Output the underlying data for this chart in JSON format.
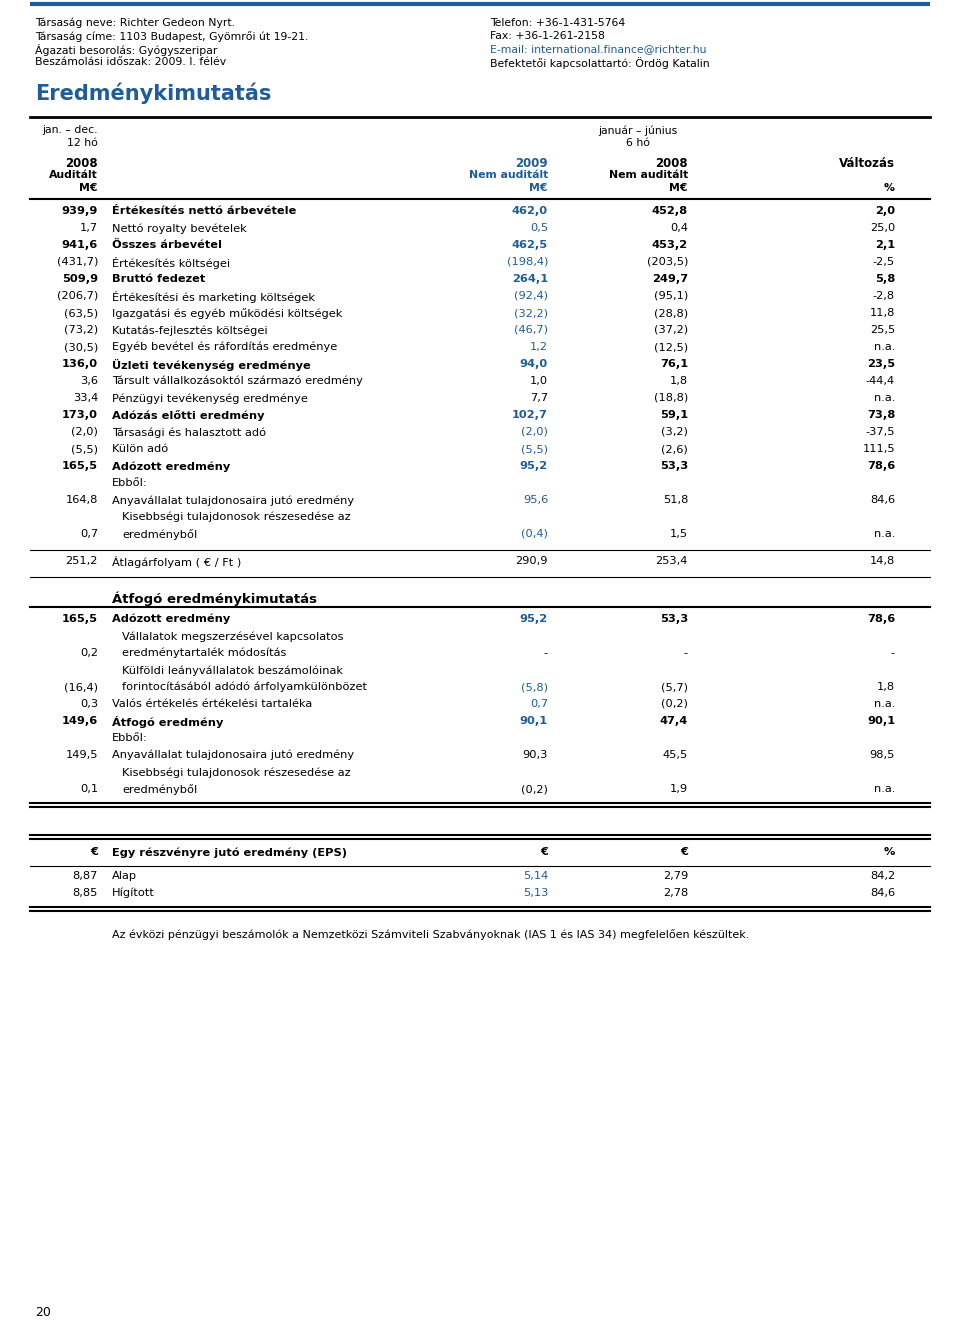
{
  "header_left1": "Társaság neve: Richter Gedeon Nyrt.",
  "header_left2": "Társaság címe: 1103 Budapest, Gyömrői út 19-21.",
  "header_left3": "Ágazati besorolás: Gyógyszeripar",
  "header_left4": "Beszámolási időszak: 2009. I. félév",
  "header_right1": "Telefon: +36-1-431-5764",
  "header_right2": "Fax: +36-1-261-2158",
  "header_right3": "E-mail: international.finance@richter.hu",
  "header_right4": "Befektetői kapcsolattartó: Ördög Katalin",
  "title": "Eredménykimutatás",
  "rows": [
    {
      "bold": true,
      "col1": "939,9",
      "label": "Értékesítés nettó árbevétele",
      "col2": "462,0",
      "col3": "452,8",
      "col4": "2,0",
      "col2_blue": true,
      "col4_bold": true
    },
    {
      "bold": false,
      "col1": "1,7",
      "label": "Nettó royalty bevételek",
      "col2": "0,5",
      "col3": "0,4",
      "col4": "25,0",
      "col2_blue": true,
      "col4_bold": false
    },
    {
      "bold": true,
      "col1": "941,6",
      "label": "Összes árbevétel",
      "col2": "462,5",
      "col3": "453,2",
      "col4": "2,1",
      "col2_blue": true,
      "col4_bold": true
    },
    {
      "bold": false,
      "col1": "(431,7)",
      "label": "Értékesítés költségei",
      "col2": "(198,4)",
      "col3": "(203,5)",
      "col4": "-2,5",
      "col2_blue": true,
      "col4_bold": false
    },
    {
      "bold": true,
      "col1": "509,9",
      "label": "Bruttó fedezet",
      "col2": "264,1",
      "col3": "249,7",
      "col4": "5,8",
      "col2_blue": true,
      "col4_bold": true
    },
    {
      "bold": false,
      "col1": "(206,7)",
      "label": "Értékesítési és marketing költségek",
      "col2": "(92,4)",
      "col3": "(95,1)",
      "col4": "-2,8",
      "col2_blue": true,
      "col4_bold": false
    },
    {
      "bold": false,
      "col1": "(63,5)",
      "label": "Igazgatási és egyéb működési költségek",
      "col2": "(32,2)",
      "col3": "(28,8)",
      "col4": "11,8",
      "col2_blue": true,
      "col4_bold": false
    },
    {
      "bold": false,
      "col1": "(73,2)",
      "label": "Kutatás-fejlesztés költségei",
      "col2": "(46,7)",
      "col3": "(37,2)",
      "col4": "25,5",
      "col2_blue": true,
      "col4_bold": false
    },
    {
      "bold": false,
      "col1": "(30,5)",
      "label": "Egyéb bevétel és ráfordítás eredménye",
      "col2": "1,2",
      "col3": "(12,5)",
      "col4": "n.a.",
      "col2_blue": true,
      "col4_bold": false
    },
    {
      "bold": true,
      "col1": "136,0",
      "label": "Üzleti tevékenység eredménye",
      "col2": "94,0",
      "col3": "76,1",
      "col4": "23,5",
      "col2_blue": true,
      "col4_bold": true
    },
    {
      "bold": false,
      "col1": "3,6",
      "label": "Társult vállalkozásoktól származó eredmény",
      "col2": "1,0",
      "col3": "1,8",
      "col4": "-44,4",
      "col2_blue": false,
      "col4_bold": false
    },
    {
      "bold": false,
      "col1": "33,4",
      "label": "Pénzügyi tevékenység eredménye",
      "col2": "7,7",
      "col3": "(18,8)",
      "col4": "n.a.",
      "col2_blue": false,
      "col4_bold": false
    },
    {
      "bold": true,
      "col1": "173,0",
      "label": "Adózás előtti eredmény",
      "col2": "102,7",
      "col3": "59,1",
      "col4": "73,8",
      "col2_blue": true,
      "col4_bold": true
    },
    {
      "bold": false,
      "col1": "(2,0)",
      "label": "Társasági és halasztott adó",
      "col2": "(2,0)",
      "col3": "(3,2)",
      "col4": "-37,5",
      "col2_blue": true,
      "col4_bold": false
    },
    {
      "bold": false,
      "col1": "(5,5)",
      "label": "Külön adó",
      "col2": "(5,5)",
      "col3": "(2,6)",
      "col4": "111,5",
      "col2_blue": true,
      "col4_bold": false
    },
    {
      "bold": true,
      "col1": "165,5",
      "label": "Adózott eredmény",
      "col2": "95,2",
      "col3": "53,3",
      "col4": "78,6",
      "col2_blue": true,
      "col4_bold": true
    },
    {
      "bold": false,
      "col1": "",
      "label": "Ebből:",
      "col2": "",
      "col3": "",
      "col4": "",
      "col2_blue": false,
      "col4_bold": false,
      "label_only": true
    },
    {
      "bold": false,
      "col1": "164,8",
      "label": "Anyavállalat tulajdonosaira jutó eredmény",
      "col2": "95,6",
      "col3": "51,8",
      "col4": "84,6",
      "col2_blue": true,
      "col4_bold": false
    },
    {
      "bold": false,
      "col1": "0,7",
      "label": "Kisebbségi tulajdonosok részesedése az",
      "col2": "",
      "col3": "",
      "col4": "",
      "col2_blue": false,
      "col4_bold": false,
      "label_only": true,
      "indent": true
    },
    {
      "bold": false,
      "col1": "0,7",
      "label": "eredményből",
      "col2": "(0,4)",
      "col3": "1,5",
      "col4": "n.a.",
      "col2_blue": true,
      "col4_bold": false,
      "indent": true
    }
  ],
  "divider_row": {
    "col1": "251,2",
    "label": "Átlagárfolyam ( € / Ft )",
    "col2": "290,9",
    "col3": "253,4",
    "col4": "14,8"
  },
  "section2_title": "Átfogó eredménykimutatás",
  "rows2": [
    {
      "bold": true,
      "col1": "165,5",
      "label": "Adózott eredmény",
      "col2": "95,2",
      "col3": "53,3",
      "col4": "78,6",
      "col2_blue": true,
      "col4_bold": true
    },
    {
      "bold": false,
      "col1": "",
      "label": "Vállalatok megszerzésével kapcsolatos",
      "col2": "",
      "col3": "",
      "col4": "",
      "col2_blue": false,
      "col4_bold": false,
      "label_only": true,
      "indent": true
    },
    {
      "bold": false,
      "col1": "0,2",
      "label": "eredménytartalék módosítás",
      "col2": "-",
      "col3": "-",
      "col4": "-",
      "col2_blue": false,
      "col4_bold": false,
      "indent": true
    },
    {
      "bold": false,
      "col1": "",
      "label": "Külföldi leányvállalatok beszámolóinak",
      "col2": "",
      "col3": "",
      "col4": "",
      "col2_blue": false,
      "col4_bold": false,
      "label_only": true,
      "indent": true
    },
    {
      "bold": false,
      "col1": "(16,4)",
      "label": "forintосításából adódó árfolyamkülönbözet",
      "col2": "(5,8)",
      "col3": "(5,7)",
      "col4": "1,8",
      "col2_blue": true,
      "col4_bold": false,
      "indent": true
    },
    {
      "bold": false,
      "col1": "0,3",
      "label": "Valós értékelés értékelési tartaléka",
      "col2": "0,7",
      "col3": "(0,2)",
      "col4": "n.a.",
      "col2_blue": true,
      "col4_bold": false
    },
    {
      "bold": true,
      "col1": "149,6",
      "label": "Átfogó eredmény",
      "col2": "90,1",
      "col3": "47,4",
      "col4": "90,1",
      "col2_blue": true,
      "col4_bold": true
    },
    {
      "bold": false,
      "col1": "",
      "label": "Ebből:",
      "col2": "",
      "col3": "",
      "col4": "",
      "col2_blue": false,
      "col4_bold": false,
      "label_only": true
    },
    {
      "bold": false,
      "col1": "149,5",
      "label": "Anyavállalat tulajdonosaira jutó eredmény",
      "col2": "90,3",
      "col3": "45,5",
      "col4": "98,5",
      "col2_blue": false,
      "col4_bold": false
    },
    {
      "bold": false,
      "col1": "",
      "label": "Kisebbségi tulajdonosok részesedése az",
      "col2": "",
      "col3": "",
      "col4": "",
      "col2_blue": false,
      "col4_bold": false,
      "label_only": true,
      "indent": true
    },
    {
      "bold": false,
      "col1": "0,1",
      "label": "eredményből",
      "col2": "(0,2)",
      "col3": "1,9",
      "col4": "n.a.",
      "col2_blue": false,
      "col4_bold": false,
      "indent": true
    }
  ],
  "eps_rows": [
    {
      "label": "Alap",
      "col1": "8,87",
      "col2": "5,14",
      "col3": "2,79",
      "col4": "84,2",
      "col2_blue": true
    },
    {
      "label": "Hígított",
      "col1": "8,85",
      "col2": "5,13",
      "col3": "2,78",
      "col4": "84,6",
      "col2_blue": true
    }
  ],
  "eps_title": "Egy részvényre jutó eredmény (EPS)",
  "footer": "Az évközi pénzügyi beszámolók a Nemzetközi Számviteli Szabványoknak (IAS 1 és IAS 34) megfelelően készültek.",
  "page_num": "20",
  "blue_color": "#1F5C99",
  "black": "#000000"
}
